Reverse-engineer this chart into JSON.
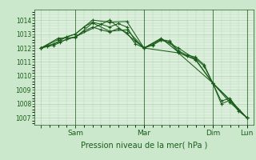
{
  "background_color": "#cce8cc",
  "plot_bg_color": "#ddf0dd",
  "grid_color": "#aacaaa",
  "line_color": "#1a5c1a",
  "xlabel": "Pression niveau de la mer( hPa )",
  "ylim": [
    1006.5,
    1014.75
  ],
  "yticks": [
    1007,
    1008,
    1009,
    1010,
    1011,
    1012,
    1013,
    1014
  ],
  "xlim": [
    -0.5,
    16.5
  ],
  "xtick_positions": [
    0,
    2.67,
    8.0,
    13.33,
    16.0
  ],
  "xtick_labels": [
    "",
    "Sam",
    "Mar",
    "Dim",
    "Lun"
  ],
  "series": [
    {
      "x": [
        0,
        0.5,
        1.0,
        1.5,
        2.0,
        2.67,
        3.33,
        4.0,
        4.67,
        5.33,
        6.0,
        6.67,
        7.33,
        8.0,
        8.67,
        9.33,
        10.0,
        10.67,
        11.33,
        12.0,
        12.67,
        13.33,
        14.0,
        14.67,
        15.33,
        16.0
      ],
      "y": [
        1012.0,
        1012.15,
        1012.3,
        1012.55,
        1012.8,
        1013.0,
        1013.5,
        1013.85,
        1013.7,
        1013.5,
        1013.75,
        1013.5,
        1012.5,
        1012.0,
        1012.25,
        1012.6,
        1012.5,
        1011.8,
        1011.5,
        1011.35,
        1010.8,
        1009.5,
        1008.2,
        1008.4,
        1007.6,
        1007.0
      ]
    },
    {
      "x": [
        0,
        0.5,
        1.0,
        1.5,
        2.0,
        2.67,
        3.33,
        4.0,
        4.67,
        5.33,
        6.0,
        6.67,
        7.33,
        8.0,
        8.67,
        9.33,
        10.0,
        10.67,
        11.33,
        12.0,
        12.67,
        13.33,
        14.0,
        14.67,
        15.33,
        16.0
      ],
      "y": [
        1012.0,
        1012.1,
        1012.2,
        1012.4,
        1012.65,
        1012.8,
        1013.2,
        1013.5,
        1013.3,
        1013.15,
        1013.4,
        1013.1,
        1012.3,
        1012.0,
        1012.2,
        1012.55,
        1012.4,
        1011.7,
        1011.4,
        1011.25,
        1010.7,
        1009.5,
        1008.0,
        1008.25,
        1007.5,
        1007.0
      ]
    },
    {
      "x": [
        0,
        1.33,
        2.67,
        4.0,
        5.33,
        6.67,
        8.0,
        9.33,
        10.67,
        12.0,
        13.33,
        14.67,
        16.0
      ],
      "y": [
        1012.0,
        1012.6,
        1013.0,
        1014.0,
        1013.85,
        1013.9,
        1012.0,
        1012.65,
        1012.0,
        1011.2,
        1009.5,
        1008.3,
        1007.0
      ]
    },
    {
      "x": [
        0,
        1.33,
        2.67,
        4.0,
        5.33,
        6.67,
        8.0,
        9.33,
        10.67,
        12.0,
        13.33,
        14.67,
        16.0
      ],
      "y": [
        1012.0,
        1012.7,
        1012.75,
        1013.8,
        1013.2,
        1013.3,
        1012.0,
        1012.7,
        1011.7,
        1011.15,
        1009.5,
        1008.1,
        1007.0
      ]
    },
    {
      "x": [
        0,
        2.67,
        5.33,
        8.0,
        10.67,
        13.33,
        16.0
      ],
      "y": [
        1012.0,
        1012.8,
        1014.0,
        1012.0,
        1011.65,
        1009.5,
        1007.0
      ]
    }
  ],
  "vline_positions": [
    2.67,
    8.0,
    13.33,
    16.0
  ],
  "xlabel_fontsize": 7.0,
  "ytick_fontsize": 5.5,
  "xtick_fontsize": 6.5
}
